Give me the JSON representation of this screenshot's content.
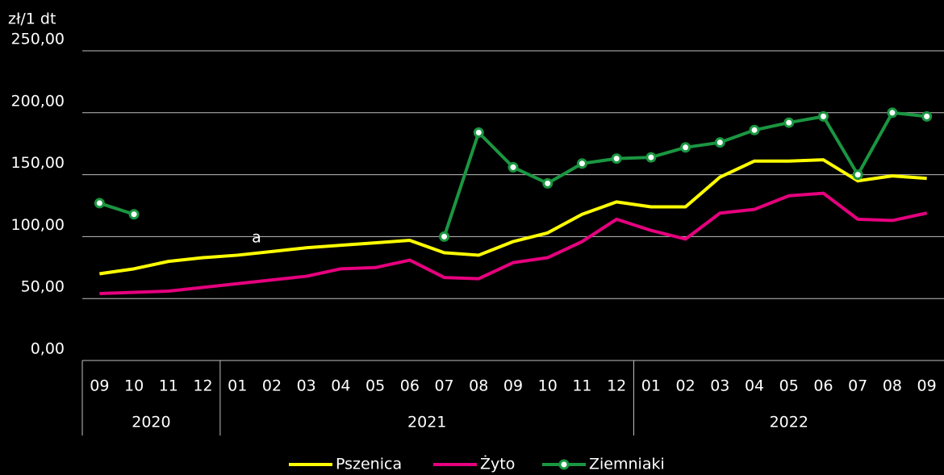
{
  "chart_data": {
    "type": "line",
    "y_axis_label": "zł/1 dt",
    "annotation": "a",
    "categories": [
      "09",
      "10",
      "11",
      "12",
      "01",
      "02",
      "03",
      "04",
      "05",
      "06",
      "07",
      "08",
      "09",
      "10",
      "11",
      "12",
      "01",
      "02",
      "03",
      "04",
      "05",
      "06",
      "07",
      "08",
      "09"
    ],
    "year_groups": [
      {
        "name": "2020",
        "count": 4
      },
      {
        "name": "2021",
        "count": 12
      },
      {
        "name": "2022",
        "count": 9
      }
    ],
    "series": [
      {
        "name": "Pszenica",
        "color": "#ffff00",
        "markers": false,
        "values": [
          70,
          74,
          80,
          83,
          85,
          88,
          91,
          93,
          95,
          97,
          87,
          85,
          96,
          103,
          118,
          128,
          124,
          124,
          148,
          161,
          161,
          162,
          145,
          149,
          147
        ]
      },
      {
        "name": "Żyto",
        "color": "#e6007e",
        "markers": false,
        "values": [
          54,
          55,
          56,
          59,
          62,
          65,
          68,
          74,
          75,
          81,
          67,
          66,
          79,
          83,
          96,
          114,
          105,
          98,
          119,
          122,
          133,
          135,
          114,
          113,
          119
        ]
      },
      {
        "name": "Ziemniaki",
        "color": "#1a9641",
        "markers": true,
        "values": [
          127,
          118,
          null,
          null,
          null,
          null,
          null,
          null,
          null,
          null,
          100,
          184,
          156,
          143,
          159,
          163,
          164,
          172,
          176,
          186,
          192,
          197,
          150,
          200,
          197
        ]
      }
    ],
    "ylim": [
      0,
      250
    ],
    "yticks": [
      {
        "value": 0,
        "label": "0,00"
      },
      {
        "value": 50,
        "label": "50,00"
      },
      {
        "value": 100,
        "label": "100,00"
      },
      {
        "value": 150,
        "label": "150,00"
      },
      {
        "value": 200,
        "label": "200,00"
      },
      {
        "value": 250,
        "label": "250,00"
      }
    ],
    "grid": true,
    "legend": "bottom"
  }
}
